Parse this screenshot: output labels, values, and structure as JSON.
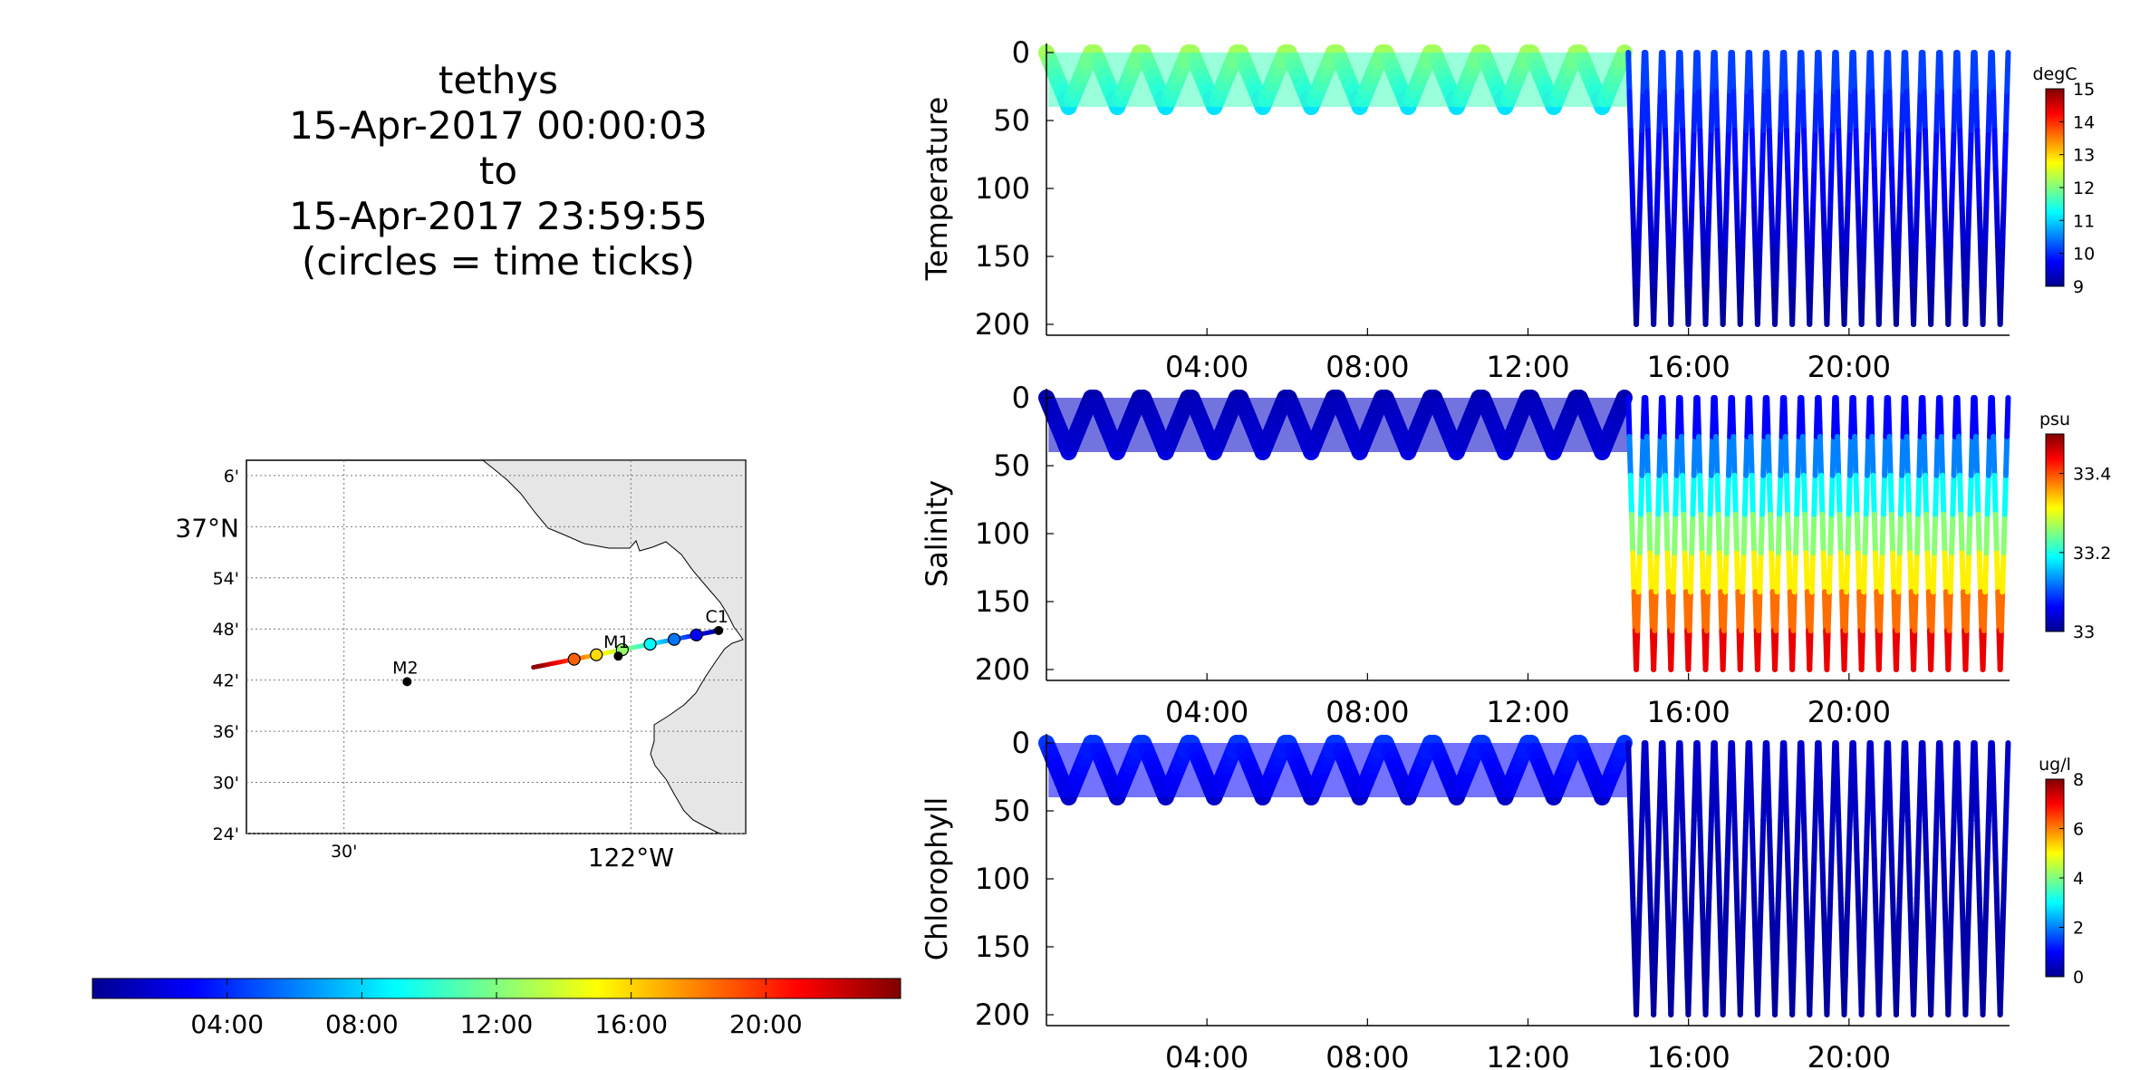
{
  "title": {
    "platform": "tethys",
    "start": "15-Apr-2017 00:00:03",
    "to": "to",
    "end": "15-Apr-2017 23:59:55",
    "note": "(circles = time ticks)"
  },
  "map": {
    "lat_ticks": [
      "6'",
      "37°N",
      "54'",
      "48'",
      "42'",
      "36'",
      "30'",
      "24'"
    ],
    "lon_ticks": [
      "30'",
      "122°W"
    ],
    "stations": [
      {
        "name": "C1",
        "lon": -121.847,
        "lat": 36.797
      },
      {
        "name": "M1",
        "lon": -122.022,
        "lat": 36.747
      },
      {
        "name": "M2",
        "lon": -122.39,
        "lat": 36.697
      }
    ],
    "track": {
      "start": {
        "lon": -121.847,
        "lat": 36.797
      },
      "end": {
        "lon": -122.17,
        "lat": 36.725
      }
    },
    "colors": {
      "land": "#e6e6e6",
      "coast": "#000000"
    }
  },
  "time_colorbar": {
    "ticks": [
      "04:00",
      "08:00",
      "12:00",
      "16:00",
      "20:00"
    ],
    "colormap": "jet"
  },
  "chart_data": [
    {
      "type": "heatmap",
      "ylabel": "Temperature",
      "units": "degC",
      "x_ticks": [
        "04:00",
        "08:00",
        "12:00",
        "16:00",
        "20:00"
      ],
      "y_ticks": [
        "0",
        "50",
        "100",
        "150",
        "200"
      ],
      "ylim": [
        200,
        0
      ],
      "xlim_hours": [
        0,
        24
      ],
      "clim": [
        9,
        15
      ],
      "cbar_ticks": [
        "9",
        "10",
        "11",
        "12",
        "13",
        "14",
        "15"
      ],
      "phases": [
        {
          "start_h": 0.0,
          "end_h": 14.5,
          "max_depth": 40,
          "value_top": 12.3,
          "value_bottom": 11.0
        },
        {
          "start_h": 14.5,
          "end_h": 24.0,
          "max_depth": 200,
          "value_top": 10.2,
          "value_bottom": 9.1
        }
      ]
    },
    {
      "type": "heatmap",
      "ylabel": "Salinity",
      "units": "psu",
      "x_ticks": [
        "04:00",
        "08:00",
        "12:00",
        "16:00",
        "20:00"
      ],
      "y_ticks": [
        "0",
        "50",
        "100",
        "150",
        "200"
      ],
      "ylim": [
        200,
        0
      ],
      "xlim_hours": [
        0,
        24
      ],
      "clim": [
        33.0,
        33.5
      ],
      "cbar_ticks": [
        "33",
        "33.2",
        "33.4"
      ],
      "phases": [
        {
          "start_h": 0.0,
          "end_h": 14.5,
          "max_depth": 40,
          "value_top": 33.02,
          "value_bottom": 33.05
        },
        {
          "start_h": 14.5,
          "end_h": 24.0,
          "max_depth": 200,
          "value_top": 33.03,
          "value_bottom": 33.48
        }
      ]
    },
    {
      "type": "heatmap",
      "ylabel": "Chlorophyll",
      "units": "ug/l",
      "x_ticks": [
        "04:00",
        "08:00",
        "12:00",
        "16:00",
        "20:00"
      ],
      "y_ticks": [
        "0",
        "50",
        "100",
        "150",
        "200"
      ],
      "ylim": [
        200,
        0
      ],
      "xlim_hours": [
        0,
        24
      ],
      "clim": [
        0,
        8
      ],
      "cbar_ticks": [
        "0",
        "2",
        "4",
        "6",
        "8"
      ],
      "phases": [
        {
          "start_h": 0.0,
          "end_h": 14.5,
          "max_depth": 40,
          "value_top": 1.5,
          "value_bottom": 0.5
        },
        {
          "start_h": 14.5,
          "end_h": 24.0,
          "max_depth": 200,
          "value_top": 0.6,
          "value_bottom": 0.2
        }
      ]
    }
  ]
}
